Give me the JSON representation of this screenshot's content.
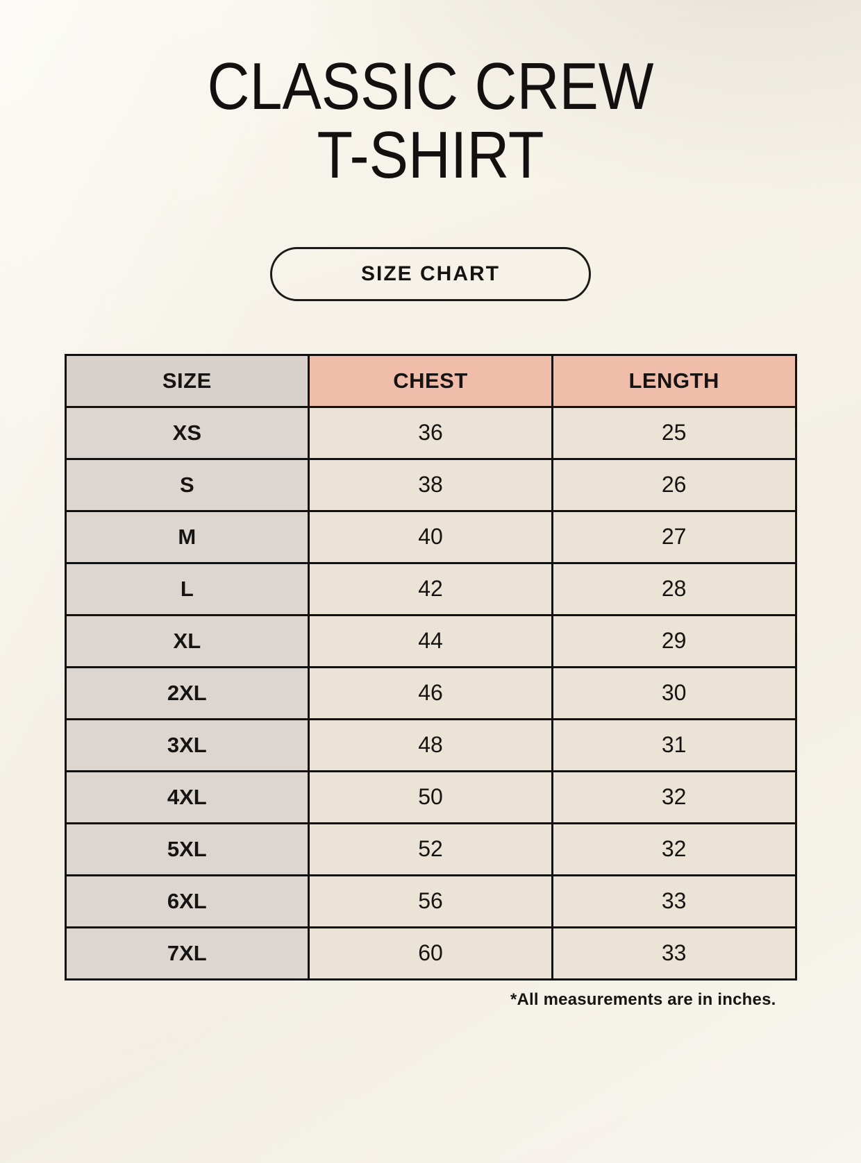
{
  "page": {
    "title_line1": "CLASSIC CREW",
    "title_line2": "T-SHIRT",
    "badge_label": "SIZE CHART",
    "footnote": "*All measurements are in inches."
  },
  "colors": {
    "background": "#f5f1e8",
    "accent_salmon": "#f0bdab",
    "header_gray": "#d9d1cb",
    "row_label_gray": "#ddd6d0",
    "cell_cream": "#eae3d6",
    "border_ink": "#131110",
    "text_ink": "#161412"
  },
  "chart_data": {
    "type": "table",
    "title": "CLASSIC CREW T-SHIRT",
    "subtitle": "SIZE CHART",
    "note": "*All measurements are in inches.",
    "units": "inches",
    "columns": [
      "SIZE",
      "CHEST",
      "LENGTH"
    ],
    "rows": [
      {
        "size": "XS",
        "chest": "36",
        "length": "25"
      },
      {
        "size": "S",
        "chest": "38",
        "length": "26"
      },
      {
        "size": "M",
        "chest": "40",
        "length": "27"
      },
      {
        "size": "L",
        "chest": "42",
        "length": "28"
      },
      {
        "size": "XL",
        "chest": "44",
        "length": "29"
      },
      {
        "size": "2XL",
        "chest": "46",
        "length": "30"
      },
      {
        "size": "3XL",
        "chest": "48",
        "length": "31"
      },
      {
        "size": "4XL",
        "chest": "50",
        "length": "32"
      },
      {
        "size": "5XL",
        "chest": "52",
        "length": "32"
      },
      {
        "size": "6XL",
        "chest": "56",
        "length": "33"
      },
      {
        "size": "7XL",
        "chest": "60",
        "length": "33"
      }
    ]
  }
}
